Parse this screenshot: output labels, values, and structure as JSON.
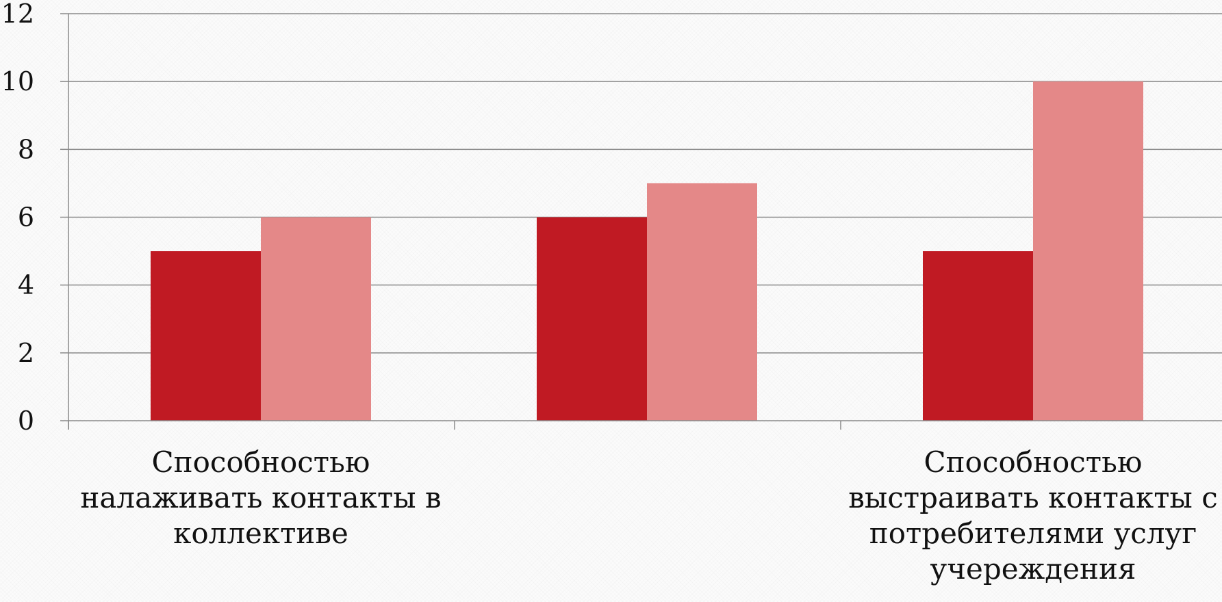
{
  "chart_data": {
    "type": "bar",
    "title": "",
    "xlabel": "",
    "ylabel": "",
    "ylim": [
      0,
      12
    ],
    "yticks": [
      0,
      2,
      4,
      6,
      8,
      10,
      12
    ],
    "grid": true,
    "legend": "none",
    "categories": [
      [
        "Способностью",
        "налаживать контакты в",
        "коллективе"
      ],
      [],
      [
        "Способностью",
        "выстраивать контакты с",
        "потребителями услуг",
        "учереждения"
      ]
    ],
    "series": [
      {
        "values": [
          5,
          6,
          5
        ],
        "color": "#c01a23"
      },
      {
        "values": [
          6,
          7,
          10
        ],
        "color": "#e48888"
      }
    ]
  }
}
